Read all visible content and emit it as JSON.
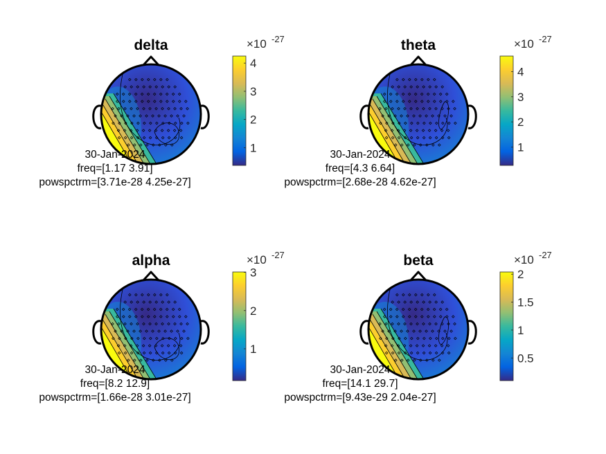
{
  "chart_data": [
    {
      "type": "heatmap",
      "title": "delta",
      "info_lines": [
        "30-Jan-2024",
        "freq=[1.17 3.91]",
        "powspctrm=[3.71e-28 4.25e-27]"
      ],
      "colorbar": {
        "multiplier": "×10",
        "exponent": "-27",
        "range": [
          0.371,
          4.25
        ],
        "ticks": [
          "1",
          "2",
          "3",
          "4"
        ],
        "tick_values": [
          1,
          2,
          3,
          4
        ]
      },
      "hotspot": "left-lower-temporal"
    },
    {
      "type": "heatmap",
      "title": "theta",
      "info_lines": [
        "30-Jan-2024",
        "freq=[4.3 6.64]",
        "powspctrm=[2.68e-28 4.62e-27]"
      ],
      "colorbar": {
        "multiplier": "×10",
        "exponent": "-27",
        "range": [
          0.268,
          4.62
        ],
        "ticks": [
          "1",
          "2",
          "3",
          "4"
        ],
        "tick_values": [
          1,
          2,
          3,
          4
        ]
      },
      "hotspot": "left-lower-temporal"
    },
    {
      "type": "heatmap",
      "title": "alpha",
      "info_lines": [
        "30-Jan-2024",
        "freq=[8.2 12.9]",
        "powspctrm=[1.66e-28 3.01e-27]"
      ],
      "colorbar": {
        "multiplier": "×10",
        "exponent": "-27",
        "range": [
          0.166,
          3.01
        ],
        "ticks": [
          "1",
          "2",
          "3"
        ],
        "tick_values": [
          1,
          2,
          3
        ]
      },
      "hotspot": "left-lower-temporal"
    },
    {
      "type": "heatmap",
      "title": "beta",
      "info_lines": [
        "30-Jan-2024",
        "freq=[14.1 29.7]",
        "powspctrm=[9.43e-29 2.04e-27]"
      ],
      "colorbar": {
        "multiplier": "×10",
        "exponent": "-27",
        "range": [
          0.0943,
          2.04
        ],
        "ticks": [
          "0.5",
          "1",
          "1.5",
          "2"
        ],
        "tick_values": [
          0.5,
          1,
          1.5,
          2
        ]
      },
      "hotspot": "left-lower-temporal"
    }
  ],
  "colors": {
    "parula": [
      "#352a87",
      "#0363e1",
      "#1485d4",
      "#06a7c6",
      "#38b99e",
      "#92bf73",
      "#d9ba56",
      "#fcce2e",
      "#f9fb0e"
    ],
    "outline": "#000000",
    "background": "#ffffff"
  }
}
